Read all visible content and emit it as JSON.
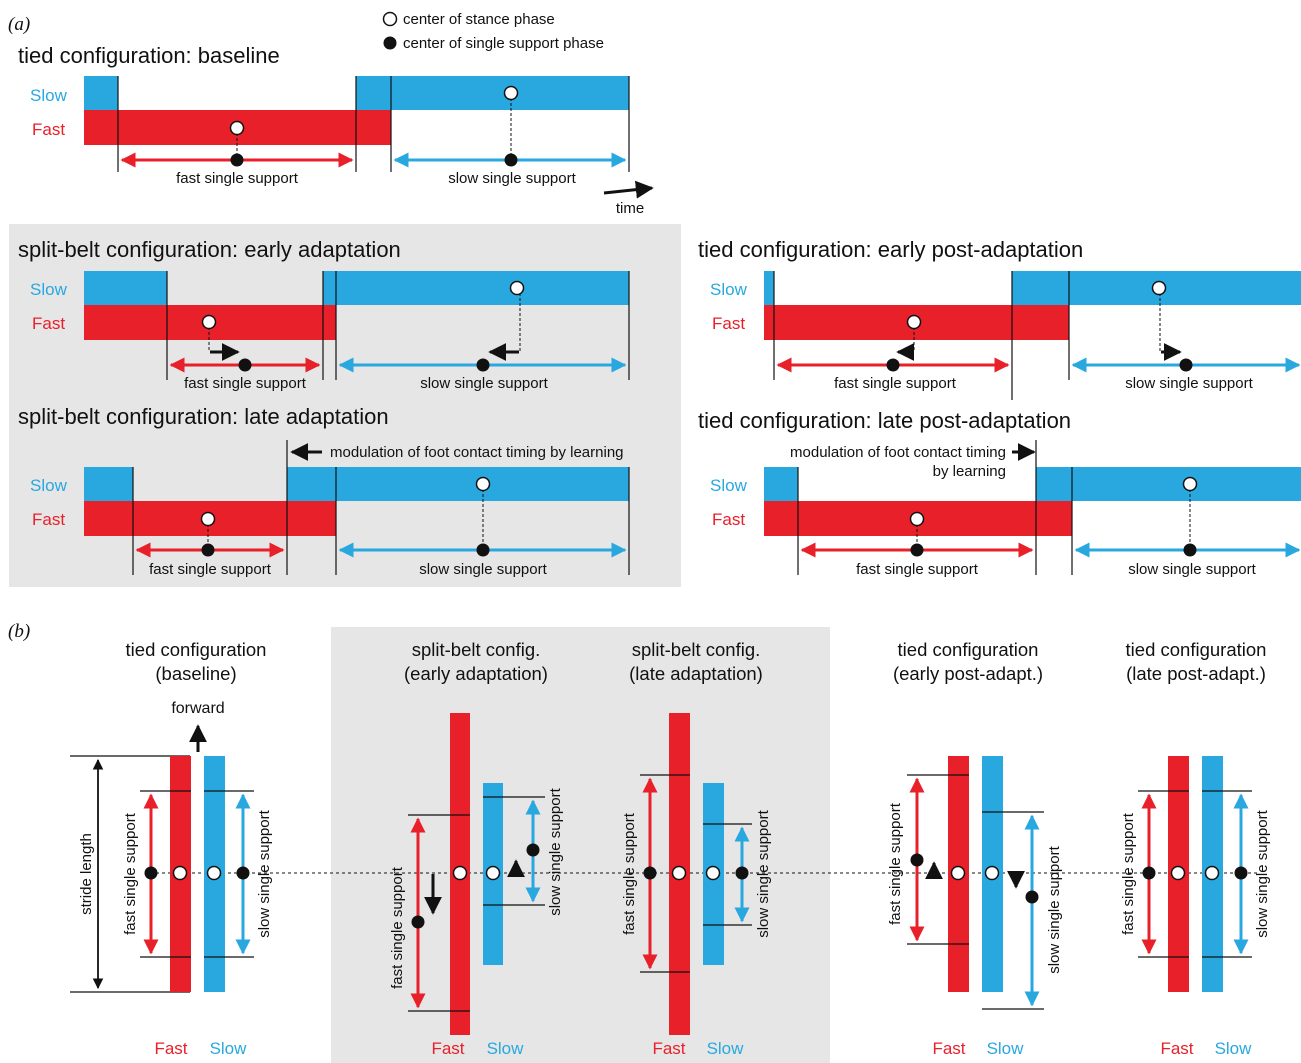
{
  "colors": {
    "fast": "#e8202a",
    "slow": "#29a8e0",
    "panel": "#e6e6e6",
    "ink": "#111111"
  },
  "panel_a": {
    "label": "(a)",
    "legend": {
      "stance": "center of stance phase",
      "single": "center of single support phase"
    },
    "time_label": "time",
    "rows": {
      "baseline": {
        "title": "tied configuration: baseline",
        "slow": "Slow",
        "fast": "Fast",
        "fast_ss": "fast single support",
        "slow_ss": "slow single support"
      },
      "early_adapt": {
        "title": "split-belt configuration: early adaptation",
        "slow": "Slow",
        "fast": "Fast",
        "fast_ss": "fast single support",
        "slow_ss": "slow single support"
      },
      "late_adapt": {
        "title": "split-belt configuration: late adaptation",
        "slow": "Slow",
        "fast": "Fast",
        "fast_ss": "fast single support",
        "slow_ss": "slow single support",
        "note": "modulation of foot contact timing by learning"
      },
      "early_post": {
        "title": "tied configuration: early post-adaptation",
        "slow": "Slow",
        "fast": "Fast",
        "fast_ss": "fast single support",
        "slow_ss": "slow single support"
      },
      "late_post": {
        "title": "tied configuration: late post-adaptation",
        "slow": "Slow",
        "fast": "Fast",
        "fast_ss": "fast single support",
        "slow_ss": "slow single support",
        "note1": "modulation of foot contact timing",
        "note2": "by learning"
      }
    }
  },
  "panel_b": {
    "label": "(b)",
    "forward": "forward",
    "stride": "stride length",
    "groups": {
      "baseline": {
        "t1": "tied configuration",
        "t2": "(baseline)",
        "fast_ss": "fast single support",
        "slow_ss": "slow single support",
        "fast": "Fast",
        "slow": "Slow"
      },
      "early_adapt": {
        "t1": "split-belt config.",
        "t2": "(early adaptation)",
        "fast_ss": "fast single support",
        "slow_ss": "slow single support",
        "fast": "Fast",
        "slow": "Slow"
      },
      "late_adapt": {
        "t1": "split-belt config.",
        "t2": "(late adaptation)",
        "fast_ss": "fast single support",
        "slow_ss": "slow single support",
        "fast": "Fast",
        "slow": "Slow"
      },
      "early_post": {
        "t1": "tied configuration",
        "t2": "(early post-adapt.)",
        "fast_ss": "fast single support",
        "slow_ss": "slow single support",
        "fast": "Fast",
        "slow": "Slow"
      },
      "late_post": {
        "t1": "tied configuration",
        "t2": "(late post-adapt.)",
        "fast_ss": "fast single support",
        "slow_ss": "slow single support",
        "fast": "Fast",
        "slow": "Slow"
      }
    }
  }
}
